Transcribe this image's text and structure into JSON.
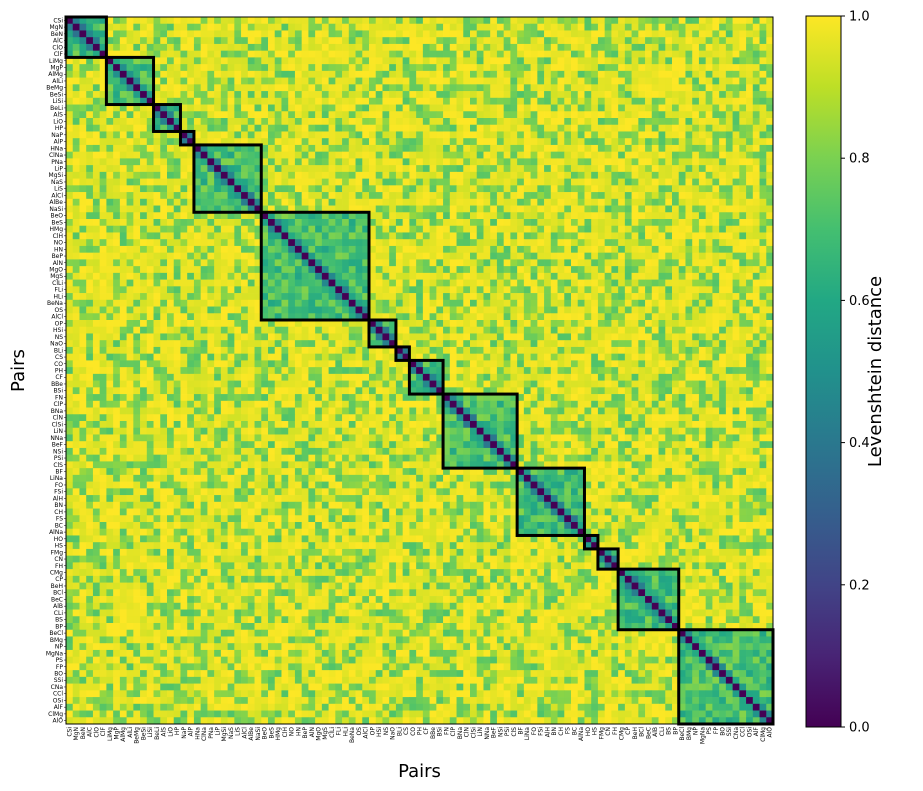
{
  "chart_data": {
    "type": "heatmap",
    "title": "",
    "xlabel": "Pairs",
    "ylabel": "Pairs",
    "colorbar_label": "Levenshtein distance",
    "colorbar_range": [
      0,
      1
    ],
    "colorbar_ticks": [
      "0.0",
      "0.2",
      "0.4",
      "0.6",
      "0.8",
      "1.0"
    ],
    "colormap": "viridis",
    "diagonal_value": 0.0,
    "within_cluster_value_approx": 0.7,
    "between_cluster_value_approx": 0.95,
    "pairs": [
      "CSi",
      "MgN",
      "BeN",
      "AlC",
      "ClO",
      "ClF",
      "LiMg",
      "MgP",
      "AlMg",
      "AlLi",
      "BeMg",
      "BeSi",
      "LiSi",
      "BeLi",
      "AlS",
      "LiO",
      "HP",
      "NaP",
      "AlP",
      "HNa",
      "ClNa",
      "PNa",
      "LiP",
      "MgSi",
      "NaS",
      "LiS",
      "AlCl",
      "AlBe",
      "NaSi",
      "BeO",
      "BeS",
      "HMg",
      "ClH",
      "NO",
      "HN",
      "BeP",
      "AlN",
      "MgO",
      "MgS",
      "ClLi",
      "FLi",
      "HLi",
      "BeNa",
      "OS",
      "AlCl",
      "OP",
      "HSi",
      "NS",
      "NaO",
      "BLi",
      "CS",
      "CO",
      "PH",
      "CF",
      "BBe",
      "BSi",
      "FN",
      "ClP",
      "BNa",
      "ClN",
      "ClSi",
      "LiN",
      "NNa",
      "BeF",
      "NSi",
      "PSi",
      "ClS",
      "BF",
      "LiNa",
      "FO",
      "FSi",
      "AlH",
      "BN",
      "CH",
      "FS",
      "BC",
      "AlNa",
      "HO",
      "HS",
      "FMg",
      "CN",
      "FH",
      "CMg",
      "CP",
      "BeH",
      "BCl",
      "BeC",
      "AlB",
      "CLi",
      "BS",
      "BP",
      "BeCl",
      "BMg",
      "NP",
      "MgNa",
      "PS",
      "FP",
      "BO",
      "SSi",
      "CNa",
      "CCl",
      "OSi",
      "AlF",
      "ClMg",
      "AlO"
    ],
    "clusters": [
      [
        0,
        6
      ],
      [
        6,
        13
      ],
      [
        13,
        17
      ],
      [
        17,
        19
      ],
      [
        19,
        29
      ],
      [
        29,
        45
      ],
      [
        45,
        49
      ],
      [
        49,
        51
      ],
      [
        51,
        56
      ],
      [
        56,
        67
      ],
      [
        67,
        77
      ],
      [
        77,
        79
      ],
      [
        79,
        82
      ],
      [
        82,
        91
      ],
      [
        91,
        105
      ]
    ]
  }
}
